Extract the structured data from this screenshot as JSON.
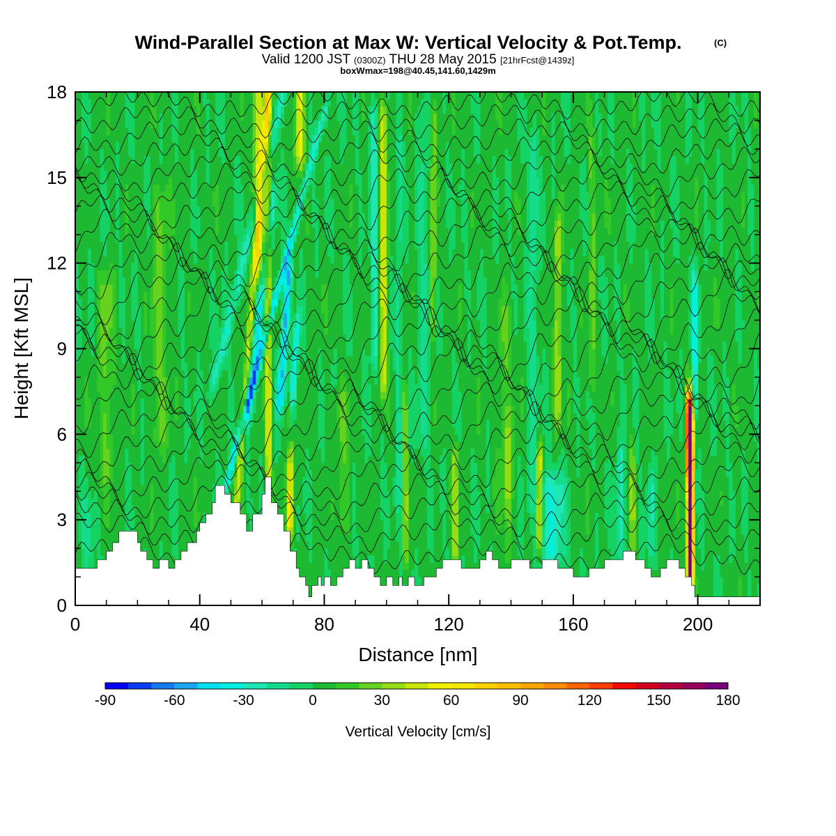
{
  "figure": {
    "title_main": "Wind-Parallel Section at Max W: Vertical Velocity & Pot.Temp.",
    "title_mark": "(C)",
    "subtitle_a": "Valid 1200 JST",
    "subtitle_b": "(0300Z)",
    "subtitle_c": "THU 28 May 2015",
    "subtitle_d": "[21hrFcst@1439z]",
    "info_line": "boxWmax=198@40.45,141.60,1429m",
    "xlabel": "Distance [nm]",
    "ylabel": "Height [Kft MSL]",
    "colorbar_label": "Vertical Velocity [cm/s]"
  },
  "chart_data": {
    "type": "heatmap",
    "title": "Wind-Parallel Section at Max W: Vertical Velocity & Pot.Temp.",
    "xlabel": "Distance [nm]",
    "ylabel": "Height [Kft MSL]",
    "xlim": [
      0,
      220
    ],
    "ylim": [
      0,
      18
    ],
    "x_ticks": [
      0,
      40,
      80,
      120,
      160,
      200
    ],
    "y_ticks": [
      0,
      3,
      6,
      9,
      12,
      15,
      18
    ],
    "grid": false,
    "colorbar": {
      "label": "Vertical Velocity [cm/s]",
      "ticks": [
        -90,
        -60,
        -30,
        0,
        30,
        60,
        90,
        120,
        150,
        180
      ],
      "levels": [
        -90,
        -80,
        -70,
        -60,
        -50,
        -40,
        -30,
        -20,
        -10,
        0,
        10,
        20,
        30,
        40,
        50,
        60,
        70,
        80,
        90,
        100,
        110,
        120,
        130,
        140,
        150,
        160,
        170,
        180
      ],
      "colors": [
        "#0000f5",
        "#0a3cf5",
        "#1478f0",
        "#1ea5f0",
        "#00e0f0",
        "#00f0e0",
        "#1ee6b4",
        "#14dc8c",
        "#14d264",
        "#1eb932",
        "#32c828",
        "#64d21e",
        "#96dc14",
        "#c8e60a",
        "#f0f000",
        "#f5e600",
        "#ffd200",
        "#ffbe00",
        "#ffa500",
        "#ff8c00",
        "#ff6400",
        "#ff3c00",
        "#f00a00",
        "#d2001e",
        "#b4003c",
        "#96005a",
        "#780078"
      ]
    },
    "background_w": 3,
    "w_features": [
      {
        "x": 45,
        "ybot": 8,
        "ytop": 18,
        "w": 1.6,
        "val": -30,
        "tilt": 2.2
      },
      {
        "x": 48,
        "ybot": 4,
        "ytop": 17,
        "w": 1.1,
        "val": -35,
        "tilt": 2.4
      },
      {
        "x": 50,
        "ybot": 5,
        "ytop": 13,
        "w": 0.8,
        "val": -15,
        "tilt": 2.5
      },
      {
        "x": 56,
        "ybot": 7,
        "ytop": 14,
        "w": 1.4,
        "val": -40,
        "tilt": 1.0
      },
      {
        "x": 66,
        "ybot": 7.5,
        "ytop": 11.5,
        "w": 1.3,
        "val": -55,
        "tilt": 0.6
      },
      {
        "x": 69,
        "ybot": 6,
        "ytop": 9.5,
        "w": 1.0,
        "val": -45,
        "tilt": 0.6
      },
      {
        "x": 96,
        "ybot": 9,
        "ytop": 17,
        "w": 1.2,
        "val": -30,
        "tilt": 0.0
      },
      {
        "x": 104,
        "ybot": 4,
        "ytop": 16,
        "w": 0.8,
        "val": -22,
        "tilt": 0.0
      },
      {
        "x": 112,
        "ybot": 6,
        "ytop": 17,
        "w": 2.0,
        "val": -15,
        "tilt": 0.0
      },
      {
        "x": 147,
        "ybot": 4,
        "ytop": 16,
        "w": 1.5,
        "val": -20,
        "tilt": 0.0
      },
      {
        "x": 153,
        "ybot": 2.0,
        "ytop": 4.0,
        "w": 4.0,
        "val": -35,
        "tilt": 0.0
      },
      {
        "x": 175,
        "ybot": 2.2,
        "ytop": 5.0,
        "w": 1.2,
        "val": -30,
        "tilt": 0.0
      },
      {
        "x": 185,
        "ybot": 2.0,
        "ytop": 4.0,
        "w": 1.2,
        "val": -20,
        "tilt": 0.0
      },
      {
        "x": 199,
        "ybot": 7.5,
        "ytop": 11,
        "w": 1.0,
        "val": -40,
        "tilt": 0.0
      },
      {
        "x": 4,
        "ybot": 1,
        "ytop": 3,
        "w": 2.0,
        "val": -15,
        "tilt": 0.0
      },
      {
        "x": 50,
        "ybot": 1,
        "ytop": 18,
        "w": 1.0,
        "val": 40,
        "tilt": 0.7
      },
      {
        "x": 59,
        "ybot": 12,
        "ytop": 18,
        "w": 2.0,
        "val": 45,
        "tilt": 0.0
      },
      {
        "x": 62,
        "ybot": 3,
        "ytop": 18,
        "w": 1.0,
        "val": 45,
        "tilt": 0.0
      },
      {
        "x": 72,
        "ybot": 16,
        "ytop": 18,
        "w": 1.5,
        "val": 55,
        "tilt": 0.0
      },
      {
        "x": 69,
        "ybot": 3,
        "ytop": 6.5,
        "w": 1.0,
        "val": 55,
        "tilt": 0.0
      },
      {
        "x": 99,
        "ybot": 8,
        "ytop": 17,
        "w": 1.2,
        "val": 45,
        "tilt": 0.0
      },
      {
        "x": 106,
        "ybot": 2,
        "ytop": 7,
        "w": 0.6,
        "val": 40,
        "tilt": 0.0
      },
      {
        "x": 115,
        "ybot": 10,
        "ytop": 17,
        "w": 1.0,
        "val": 30,
        "tilt": 0.0
      },
      {
        "x": 122,
        "ybot": 2,
        "ytop": 5,
        "w": 0.8,
        "val": 40,
        "tilt": 0.0
      },
      {
        "x": 139,
        "ybot": 2,
        "ytop": 6,
        "w": 0.6,
        "val": 30,
        "tilt": 0.0
      },
      {
        "x": 149,
        "ybot": 2.5,
        "ytop": 5,
        "w": 0.9,
        "val": 55,
        "tilt": 0.0
      },
      {
        "x": 155,
        "ybot": 7,
        "ytop": 13,
        "w": 1.0,
        "val": 40,
        "tilt": 0.0
      },
      {
        "x": 166,
        "ybot": 8,
        "ytop": 16,
        "w": 1.0,
        "val": 20,
        "tilt": 0.0
      },
      {
        "x": 179,
        "ybot": 2,
        "ytop": 5,
        "w": 0.6,
        "val": 40,
        "tilt": 0.0
      },
      {
        "x": 197,
        "ybot": 5,
        "ytop": 7,
        "w": 1.0,
        "val": 80,
        "tilt": 0.0
      },
      {
        "x": 197.5,
        "ybot": 1,
        "ytop": 6.5,
        "w": 0.9,
        "val": 150,
        "tilt": 0.0
      },
      {
        "x": 197.8,
        "ybot": 2,
        "ytop": 5,
        "w": 0.5,
        "val": 180,
        "tilt": 0.0
      },
      {
        "x": 10,
        "ybot": 5,
        "ytop": 11,
        "w": 2.5,
        "val": 20,
        "tilt": 0.0
      },
      {
        "x": 27,
        "ybot": 6,
        "ytop": 14,
        "w": 2.5,
        "val": 20,
        "tilt": 0.0
      },
      {
        "x": 138,
        "ybot": 4,
        "ytop": 10,
        "w": 2.5,
        "val": 15,
        "tilt": 0.0
      },
      {
        "x": 86,
        "ybot": 3,
        "ytop": 7,
        "w": 2.0,
        "val": 15,
        "tilt": 0.0
      }
    ],
    "terrain": {
      "x": [
        0,
        7,
        7,
        8,
        8,
        10,
        10,
        12,
        12,
        14,
        14,
        16,
        16,
        20,
        20,
        21,
        21,
        23,
        23,
        25,
        25,
        27,
        27,
        30,
        30,
        32,
        32,
        34,
        34,
        36,
        36,
        39,
        39,
        40,
        40,
        42,
        42,
        44,
        44,
        45,
        45,
        48,
        48,
        50,
        50,
        53,
        53,
        55,
        55,
        57,
        57,
        60,
        60,
        61,
        61,
        63,
        63,
        65,
        65,
        67,
        67,
        69,
        69,
        71,
        71,
        72,
        72,
        74,
        74,
        75,
        75,
        76,
        76,
        77,
        77,
        78,
        78,
        79,
        79,
        80,
        80,
        82,
        82,
        84,
        84,
        86,
        86,
        88,
        88,
        90,
        90,
        92,
        92,
        94,
        94,
        96,
        96,
        98,
        98,
        100,
        100,
        102,
        102,
        104,
        104,
        105,
        105,
        107,
        107,
        109,
        109,
        112,
        112,
        116,
        116,
        118,
        118,
        124,
        124,
        130,
        130,
        132,
        132,
        134,
        134,
        136,
        136,
        140,
        140,
        146,
        146,
        150,
        150,
        155,
        155,
        160,
        160,
        165,
        165,
        170,
        170,
        176,
        176,
        180,
        180,
        183,
        183,
        185,
        185,
        188,
        188,
        190,
        190,
        194,
        194,
        196,
        196,
        198,
        198,
        199,
        199,
        220
      ],
      "y": [
        1.3,
        1.3,
        1.6,
        1.6,
        1.6,
        1.6,
        1.9,
        1.9,
        2.2,
        2.2,
        2.6,
        2.6,
        2.6,
        2.6,
        2.2,
        2.2,
        1.9,
        1.9,
        1.6,
        1.6,
        1.3,
        1.3,
        1.6,
        1.6,
        1.3,
        1.3,
        1.6,
        1.6,
        1.9,
        1.9,
        2.2,
        2.2,
        2.6,
        2.6,
        2.9,
        2.9,
        3.2,
        3.2,
        3.6,
        3.6,
        4.2,
        4.2,
        3.9,
        3.9,
        3.6,
        3.6,
        3.2,
        3.2,
        2.6,
        2.6,
        3.2,
        3.2,
        3.9,
        3.9,
        4.5,
        4.5,
        3.6,
        3.6,
        3.2,
        3.2,
        2.6,
        2.6,
        1.9,
        1.9,
        1.3,
        1.3,
        1.0,
        1.0,
        0.7,
        0.7,
        0.3,
        0.3,
        0.7,
        0.7,
        0.7,
        0.7,
        1.0,
        1.0,
        0.7,
        0.7,
        1.0,
        1.0,
        0.7,
        0.7,
        1.0,
        1.0,
        1.3,
        1.3,
        1.6,
        1.6,
        1.3,
        1.3,
        1.6,
        1.6,
        1.3,
        1.3,
        1.0,
        1.0,
        0.7,
        0.7,
        1.0,
        1.0,
        0.7,
        0.7,
        1.0,
        1.0,
        0.7,
        0.7,
        1.0,
        1.0,
        0.7,
        0.7,
        1.0,
        1.0,
        1.3,
        1.3,
        1.6,
        1.6,
        1.3,
        1.3,
        1.6,
        1.6,
        1.9,
        1.9,
        1.6,
        1.6,
        1.3,
        1.3,
        1.6,
        1.6,
        1.3,
        1.3,
        1.6,
        1.6,
        1.3,
        1.3,
        1.0,
        1.0,
        1.3,
        1.3,
        1.6,
        1.6,
        1.9,
        1.9,
        1.6,
        1.6,
        1.3,
        1.3,
        1.0,
        1.0,
        1.3,
        1.3,
        1.6,
        1.6,
        1.3,
        1.3,
        1.0,
        1.0,
        0.7,
        0.7,
        0.3,
        0.3
      ]
    },
    "theta_lines": [
      {
        "base": 1.8,
        "wiggle": 0.35
      },
      {
        "base": 2.6,
        "wiggle": 0.35
      },
      {
        "base": 3.2,
        "wiggle": 0.4
      },
      {
        "base": 3.8,
        "wiggle": 0.45
      },
      {
        "base": 4.4,
        "wiggle": 0.5
      },
      {
        "base": 5.0,
        "wiggle": 0.55
      },
      {
        "base": 5.6,
        "wiggle": 0.6
      },
      {
        "base": 6.2,
        "wiggle": 0.65
      },
      {
        "base": 6.8,
        "wiggle": 0.7
      },
      {
        "base": 7.4,
        "wiggle": 0.75
      },
      {
        "base": 8.0,
        "wiggle": 0.8
      },
      {
        "base": 8.6,
        "wiggle": 0.8
      },
      {
        "base": 9.2,
        "wiggle": 0.8
      },
      {
        "base": 9.8,
        "wiggle": 0.8
      },
      {
        "base": 10.4,
        "wiggle": 0.8
      },
      {
        "base": 11.0,
        "wiggle": 0.75
      },
      {
        "base": 11.6,
        "wiggle": 0.7
      },
      {
        "base": 12.2,
        "wiggle": 0.7
      },
      {
        "base": 12.8,
        "wiggle": 0.65
      },
      {
        "base": 13.4,
        "wiggle": 0.6
      },
      {
        "base": 14.0,
        "wiggle": 0.55
      },
      {
        "base": 14.6,
        "wiggle": 0.5
      },
      {
        "base": 15.2,
        "wiggle": 0.45
      },
      {
        "base": 15.8,
        "wiggle": 0.4
      },
      {
        "base": 16.4,
        "wiggle": 0.35
      },
      {
        "base": 17.0,
        "wiggle": 0.3
      },
      {
        "base": 17.6,
        "wiggle": 0.25
      }
    ]
  }
}
